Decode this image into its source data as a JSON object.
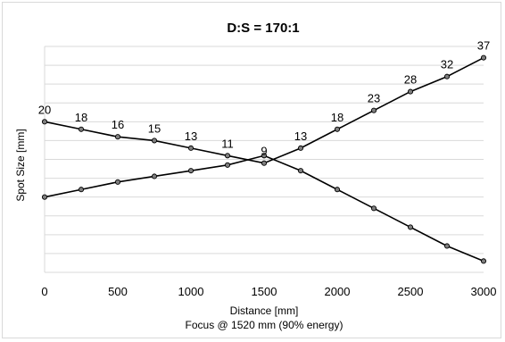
{
  "chart_data": {
    "type": "line",
    "title": "D:S = 170:1",
    "xlabel": "Distance [mm]",
    "subtitle": "Focus @ 1520 mm (90% energy)",
    "ylabel": "Spot Size [mm]",
    "xlim": [
      0,
      3000
    ],
    "ylim": [
      -20,
      40
    ],
    "grid": "horizontal",
    "x": [
      0,
      250,
      500,
      750,
      1000,
      1250,
      1500,
      1750,
      2000,
      2250,
      2500,
      2750,
      3000
    ],
    "x_tick_labels": [
      "0",
      "500",
      "1000",
      "1500",
      "2000",
      "2500",
      "3000"
    ],
    "series": [
      {
        "values": [
          20,
          18,
          16,
          15,
          13,
          11,
          9,
          13,
          18,
          23,
          28,
          32,
          37
        ],
        "data_labels": [
          "20",
          "18",
          "16",
          "15",
          "13",
          "11",
          "9",
          "13",
          "18",
          "23",
          "28",
          "32",
          "37"
        ]
      },
      {
        "values": [
          0,
          2,
          4,
          5.5,
          7,
          8.5,
          11,
          7,
          2,
          -3,
          -8,
          -13,
          -17
        ]
      }
    ],
    "colors": {
      "line": "#000000",
      "marker_fill": "#7f7f7f",
      "grid": "#d9d9d9"
    }
  }
}
